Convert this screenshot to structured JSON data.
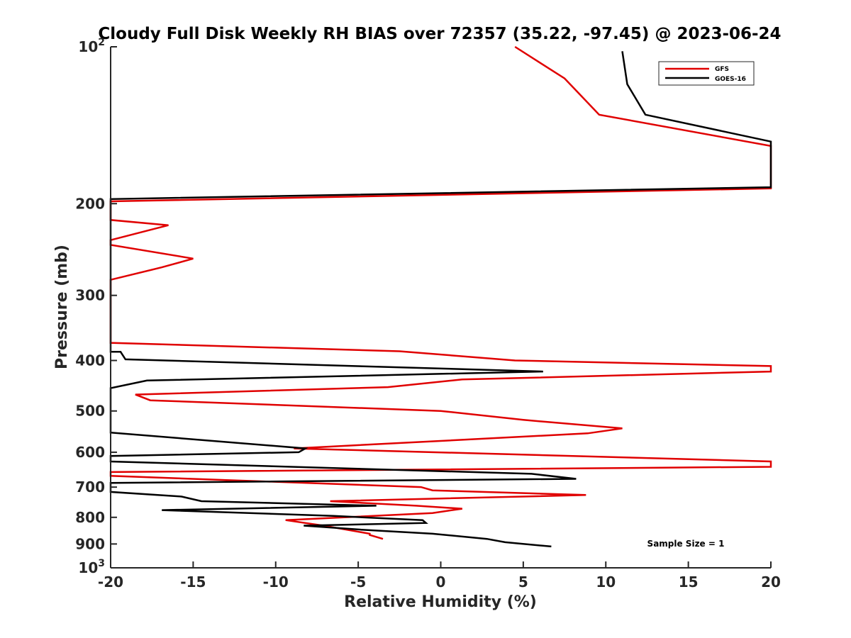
{
  "chart_data": {
    "type": "line",
    "title": "Cloudy Full Disk Weekly RH BIAS over 72357 (35.22, -97.45) @ 2023-06-24",
    "xlabel": "Relative Humidity (%)",
    "ylabel": "Pressure (mb)",
    "xlim": [
      -20,
      20
    ],
    "ylim": [
      100,
      1000
    ],
    "yscale": "log",
    "yreversed": true,
    "grid": false,
    "legend_position": "top-right",
    "xticks": [
      -20,
      -15,
      -10,
      -5,
      0,
      5,
      10,
      15,
      20
    ],
    "yticks": [
      {
        "value": 100,
        "base": "10",
        "exp": "2"
      },
      {
        "value": 200,
        "label": "200"
      },
      {
        "value": 300,
        "label": "300"
      },
      {
        "value": 400,
        "label": "400"
      },
      {
        "value": 500,
        "label": "500"
      },
      {
        "value": 600,
        "label": "600"
      },
      {
        "value": 700,
        "label": "700"
      },
      {
        "value": 800,
        "label": "800"
      },
      {
        "value": 900,
        "label": "900"
      },
      {
        "value": 1000,
        "base": "10",
        "exp": "3"
      }
    ],
    "annotation": "Sample Size = 1",
    "series": [
      {
        "name": "GFS",
        "color": "#e00000",
        "points": [
          [
            4.5,
            100
          ],
          [
            7.5,
            115
          ],
          [
            9.6,
            135
          ],
          [
            20,
            155
          ],
          [
            20,
            187
          ],
          [
            -20,
            198
          ],
          [
            -20,
            215
          ],
          [
            -16.5,
            220
          ],
          [
            -20,
            235
          ],
          [
            -20,
            240
          ],
          [
            -15,
            255
          ],
          [
            -16.9,
            265
          ],
          [
            -20,
            280
          ],
          [
            -20,
            370
          ],
          [
            -2.5,
            384
          ],
          [
            4.5,
            400
          ],
          [
            20,
            410
          ],
          [
            20,
            420
          ],
          [
            1.3,
            435
          ],
          [
            -3.2,
            450
          ],
          [
            -18.5,
            465
          ],
          [
            -17.6,
            477
          ],
          [
            0,
            500
          ],
          [
            5,
            520
          ],
          [
            11,
            540
          ],
          [
            8.9,
            552
          ],
          [
            -8.9,
            590
          ],
          [
            8,
            610
          ],
          [
            20,
            625
          ],
          [
            20,
            640
          ],
          [
            -20,
            655
          ],
          [
            -20,
            666
          ],
          [
            -1.2,
            700
          ],
          [
            -0.5,
            710
          ],
          [
            8.8,
            725
          ],
          [
            -6.7,
            745
          ],
          [
            -1.5,
            760
          ],
          [
            1.3,
            770
          ],
          [
            -0.5,
            785
          ],
          [
            -9.4,
            810
          ],
          [
            -7.1,
            830
          ],
          [
            -4.3,
            860
          ],
          [
            -4.3,
            865
          ],
          [
            -3.5,
            880
          ]
        ]
      },
      {
        "name": "GOES-16",
        "color": "#000000",
        "points": [
          [
            11,
            102
          ],
          [
            11.3,
            118
          ],
          [
            12.4,
            135
          ],
          [
            20,
            152
          ],
          [
            20,
            186
          ],
          [
            -20,
            196
          ],
          [
            -20,
            385
          ],
          [
            -19.4,
            385
          ],
          [
            -19.1,
            398
          ],
          [
            6.2,
            420
          ],
          [
            -17.8,
            437
          ],
          [
            -20,
            452
          ],
          [
            -20,
            550
          ],
          [
            -8.2,
            590
          ],
          [
            -8.6,
            600
          ],
          [
            -20,
            610
          ],
          [
            -20,
            625
          ],
          [
            5.5,
            660
          ],
          [
            8.2,
            675
          ],
          [
            -20,
            687
          ],
          [
            -20,
            715
          ],
          [
            -15.7,
            730
          ],
          [
            -14.5,
            745
          ],
          [
            -3.9,
            760
          ],
          [
            -16.9,
            775
          ],
          [
            -6.5,
            795
          ],
          [
            -1.1,
            810
          ],
          [
            -0.9,
            820
          ],
          [
            -8.3,
            830
          ],
          [
            -4.8,
            845
          ],
          [
            -0.5,
            860
          ],
          [
            2.8,
            880
          ],
          [
            3.9,
            893
          ],
          [
            6.7,
            910
          ]
        ]
      }
    ]
  }
}
